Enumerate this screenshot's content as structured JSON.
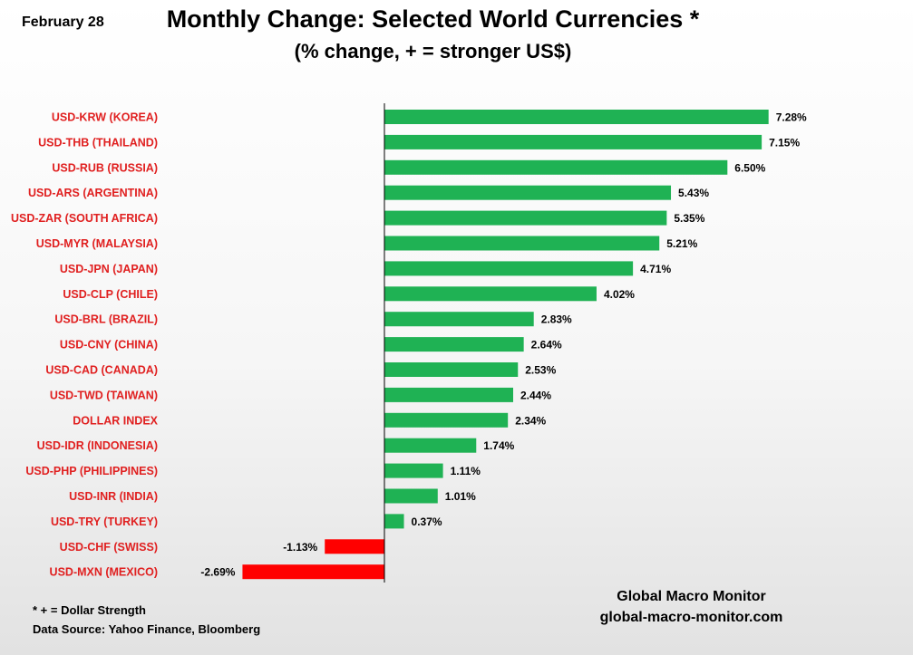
{
  "header": {
    "date": "February 28",
    "title": "Monthly Change: Selected World Currencies *",
    "subtitle": "(% change, + = stronger US$)"
  },
  "footer": {
    "note": "* + = Dollar Strength",
    "source": "Data Source:  Yahoo Finance, Bloomberg",
    "brand_name": "Global Macro Monitor",
    "brand_url": "global-macro-monitor.com"
  },
  "colors": {
    "positive": "#1fb254",
    "negative": "#ff0000",
    "category_label": "#e02020",
    "axis": "#000000"
  },
  "chart_data": {
    "type": "bar",
    "orientation": "horizontal",
    "title": "Monthly Change: Selected World Currencies *",
    "subtitle": "(% change, + = stronger US$)",
    "xlabel": "",
    "ylabel": "",
    "xlim": [
      -2.69,
      7.28
    ],
    "grid": false,
    "categories": [
      "USD-KRW (KOREA)",
      "USD-THB  (THAILAND)",
      "USD-RUB (RUSSIA)",
      "USD-ARS (ARGENTINA)",
      "USD-ZAR (SOUTH AFRICA)",
      "USD-MYR (MALAYSIA)",
      "USD-JPN (JAPAN)",
      "USD-CLP (CHILE)",
      "USD-BRL (BRAZIL)",
      "USD-CNY (CHINA)",
      "USD-CAD (CANADA)",
      "USD-TWD (TAIWAN)",
      "DOLLAR INDEX",
      "USD-IDR (INDONESIA)",
      "USD-PHP (PHILIPPINES)",
      "USD-INR (INDIA)",
      "USD-TRY (TURKEY)",
      "USD-CHF (SWISS)",
      "USD-MXN  (MEXICO)"
    ],
    "values": [
      7.28,
      7.15,
      6.5,
      5.43,
      5.35,
      5.21,
      4.71,
      4.02,
      2.83,
      2.64,
      2.53,
      2.44,
      2.34,
      1.74,
      1.11,
      1.01,
      0.37,
      -1.13,
      -2.69
    ],
    "labels": [
      "7.28%",
      "7.15%",
      "6.50%",
      "5.43%",
      "5.35%",
      "5.21%",
      "4.71%",
      "4.02%",
      "2.83%",
      "2.64%",
      "2.53%",
      "2.44%",
      "2.34%",
      "1.74%",
      "1.11%",
      "1.01%",
      "0.37%",
      "-1.13%",
      "-2.69%"
    ]
  }
}
